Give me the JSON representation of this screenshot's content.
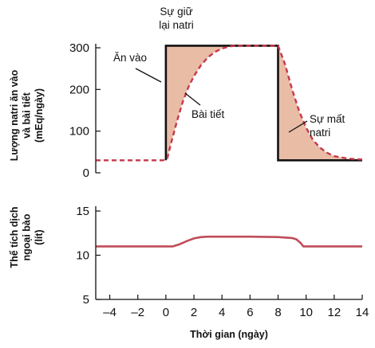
{
  "colors": {
    "intake": "#111111",
    "excretion": "#c8384a",
    "fill": "#e9bca6",
    "ecv": "#c04c58"
  },
  "chart_data": [
    {
      "type": "line",
      "ylabel": [
        "Lượng natri ăn vào",
        "và bài tiết",
        "(mEq/ngày)"
      ],
      "xlim": [
        -5,
        14
      ],
      "ylim": [
        0,
        300
      ],
      "yticks": [
        0,
        100,
        200,
        300
      ],
      "series": [
        {
          "name": "Ăn vào",
          "style": "solid",
          "x": [
            0,
            0,
            8,
            8,
            14
          ],
          "y": [
            30,
            305,
            305,
            30,
            30
          ]
        },
        {
          "name": "Bài tiết",
          "style": "dashed",
          "x": [
            -5,
            -0.2,
            0.1,
            0.4,
            0.8,
            1.2,
            1.6,
            2,
            2.5,
            3,
            3.5,
            4,
            4.5,
            5,
            6,
            7,
            8,
            8.5,
            9,
            9.5,
            10,
            10.5,
            11,
            11.5,
            12,
            13,
            14
          ],
          "y": [
            30,
            30,
            35,
            75,
            125,
            170,
            205,
            232,
            258,
            277,
            290,
            298,
            303,
            305,
            305,
            305,
            305,
            260,
            200,
            148,
            108,
            78,
            60,
            48,
            40,
            34,
            32
          ]
        }
      ],
      "annotations": [
        {
          "lines": [
            "Sự giữ",
            "lại natri"
          ]
        },
        {
          "lines": [
            "Ăn vào"
          ]
        },
        {
          "lines": [
            "Bài tiết"
          ]
        },
        {
          "lines": [
            "Sự mất",
            "natri"
          ]
        }
      ]
    },
    {
      "type": "line",
      "xlabel": "Thời gian (ngày)",
      "ylabel": [
        "Thể tích dịch",
        "ngoại bào",
        "(lít)"
      ],
      "xlim": [
        -5,
        14
      ],
      "ylim": [
        5,
        15
      ],
      "yticks": [
        5,
        10,
        15
      ],
      "xticks": [
        -4,
        -2,
        0,
        2,
        4,
        6,
        8,
        10,
        12,
        14
      ],
      "xtick_labels": [
        "–4",
        "–2",
        "0",
        "2",
        "4",
        "6",
        "8",
        "10",
        "12",
        "14"
      ],
      "series": [
        {
          "name": "",
          "x": [
            -5,
            0.5,
            1,
            1.5,
            2,
            2.5,
            3,
            4,
            6,
            8,
            9,
            9.3,
            9.6,
            9.8,
            14
          ],
          "y": [
            11,
            11,
            11.25,
            11.6,
            11.9,
            12.05,
            12.1,
            12.1,
            12.1,
            12.05,
            11.95,
            11.8,
            11.4,
            11,
            11
          ]
        }
      ]
    }
  ]
}
